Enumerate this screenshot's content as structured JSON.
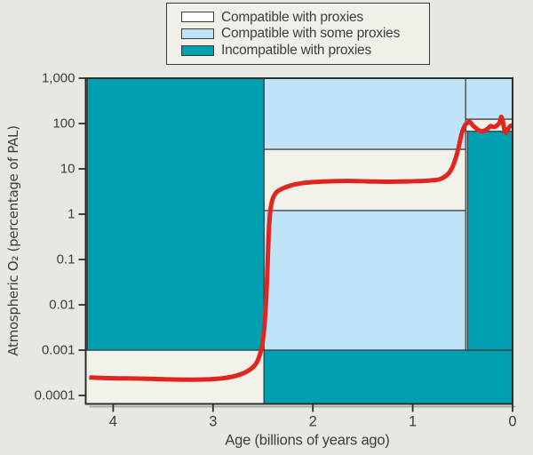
{
  "colors": {
    "page_background": "#e7e8e2",
    "plot_background": "#f3f2ea",
    "legend_background": "#f0efe8",
    "compatible": "#f3f2ea",
    "some": "#bfe3f7",
    "incompatible": "#00a0b2",
    "curve": "#e1261d",
    "region_border": "#3a3a3a",
    "frame": "#2d2d2d",
    "shadow": "#a9aca7",
    "text": "#3e3e3e"
  },
  "legend": {
    "items": [
      {
        "key": "compatible",
        "label": "Compatible with proxies",
        "swatch_color": "#fdfdfb"
      },
      {
        "key": "some",
        "label": "Compatible with some proxies",
        "swatch_color": "#bfe3f7"
      },
      {
        "key": "incompatible",
        "label": "Incompatible with proxies",
        "swatch_color": "#00a0b2"
      }
    ]
  },
  "chart_data": {
    "type": "line",
    "title": "",
    "xlabel": "Age (billions of years ago)",
    "ylabel": "Atmospheric O₂ (percentage of PAL)",
    "x_axis": {
      "label": "Age (billions of years ago)",
      "units": "billions of years ago",
      "min": 0,
      "max": 4.275,
      "direction": "age increases to the left",
      "ticks": [
        4,
        3,
        2,
        1,
        0
      ]
    },
    "y_axis": {
      "label": "Atmospheric O₂ (percentage of PAL)",
      "scale": "log",
      "min": 6.5e-05,
      "max": 1000,
      "tick_values": [
        1000,
        100,
        10,
        1,
        0.1,
        0.01,
        0.001,
        0.0001
      ],
      "tick_labels": [
        "1,000",
        "100",
        "10",
        "1",
        "0.1",
        "0.01",
        "0.001",
        "0.0001"
      ]
    },
    "legend_position": "top",
    "grid": false,
    "regions": [
      {
        "category": "compatible",
        "label": "Compatible with proxies",
        "age": [
          4.275,
          2.49
        ],
        "o2": [
          0.001,
          6.5e-05
        ]
      },
      {
        "category": "compatible",
        "label": "Compatible with proxies",
        "age": [
          2.49,
          0.47
        ],
        "o2": [
          27,
          1.2
        ]
      },
      {
        "category": "compatible",
        "label": "Compatible with proxies",
        "age": [
          0.47,
          0
        ],
        "o2": [
          125,
          67
        ]
      },
      {
        "category": "some",
        "label": "Compatible with some proxies",
        "age": [
          2.49,
          0.47
        ],
        "o2": [
          1000,
          27
        ]
      },
      {
        "category": "some",
        "label": "Compatible with some proxies",
        "age": [
          2.49,
          0.47
        ],
        "o2": [
          1.2,
          0.001
        ]
      },
      {
        "category": "some",
        "label": "Compatible with some proxies",
        "age": [
          0.47,
          0
        ],
        "o2": [
          1000,
          125
        ]
      },
      {
        "category": "incompatible",
        "label": "Incompatible with proxies",
        "age": [
          4.26,
          2.49
        ],
        "o2": [
          1000,
          0.001
        ]
      },
      {
        "category": "incompatible",
        "label": "Incompatible with proxies",
        "age": [
          2.49,
          0
        ],
        "o2": [
          0.001,
          6.5e-05
        ]
      },
      {
        "category": "incompatible",
        "label": "Incompatible with proxies",
        "age": [
          0.452,
          0
        ],
        "o2": [
          67,
          0.001
        ]
      }
    ],
    "series": [
      {
        "name": "atmospheric-o2-history",
        "color": "#e1261d",
        "points": [
          [
            4.24,
            0.00025
          ],
          [
            4.0,
            0.00024
          ],
          [
            3.7,
            0.000235
          ],
          [
            3.4,
            0.000225
          ],
          [
            3.1,
            0.000225
          ],
          [
            2.9,
            0.00024
          ],
          [
            2.75,
            0.00028
          ],
          [
            2.64,
            0.00036
          ],
          [
            2.57,
            0.0005
          ],
          [
            2.53,
            0.0008
          ],
          [
            2.505,
            0.0014
          ],
          [
            2.485,
            0.0035
          ],
          [
            2.47,
            0.011
          ],
          [
            2.458,
            0.04
          ],
          [
            2.448,
            0.16
          ],
          [
            2.44,
            0.45
          ],
          [
            2.43,
            1.0
          ],
          [
            2.415,
            1.7
          ],
          [
            2.395,
            2.4
          ],
          [
            2.36,
            3.1
          ],
          [
            2.3,
            3.7
          ],
          [
            2.22,
            4.3
          ],
          [
            2.12,
            4.8
          ],
          [
            2.0,
            5.1
          ],
          [
            1.85,
            5.3
          ],
          [
            1.65,
            5.4
          ],
          [
            1.45,
            5.3
          ],
          [
            1.25,
            5.2
          ],
          [
            1.05,
            5.3
          ],
          [
            0.9,
            5.4
          ],
          [
            0.8,
            5.6
          ],
          [
            0.73,
            5.9
          ],
          [
            0.66,
            7.2
          ],
          [
            0.61,
            10
          ],
          [
            0.57,
            17
          ],
          [
            0.54,
            30
          ],
          [
            0.51,
            60
          ],
          [
            0.48,
            88
          ],
          [
            0.455,
            103
          ],
          [
            0.43,
            109
          ],
          [
            0.4,
            92
          ],
          [
            0.36,
            77
          ],
          [
            0.32,
            68
          ],
          [
            0.28,
            70
          ],
          [
            0.24,
            80
          ],
          [
            0.22,
            88
          ],
          [
            0.19,
            84
          ],
          [
            0.16,
            89
          ],
          [
            0.13,
            105
          ],
          [
            0.115,
            140
          ],
          [
            0.1,
            118
          ],
          [
            0.085,
            80
          ],
          [
            0.07,
            63
          ],
          [
            0.05,
            72
          ],
          [
            0.03,
            85
          ],
          [
            0.015,
            90
          ],
          [
            0.0,
            88
          ]
        ]
      }
    ]
  }
}
